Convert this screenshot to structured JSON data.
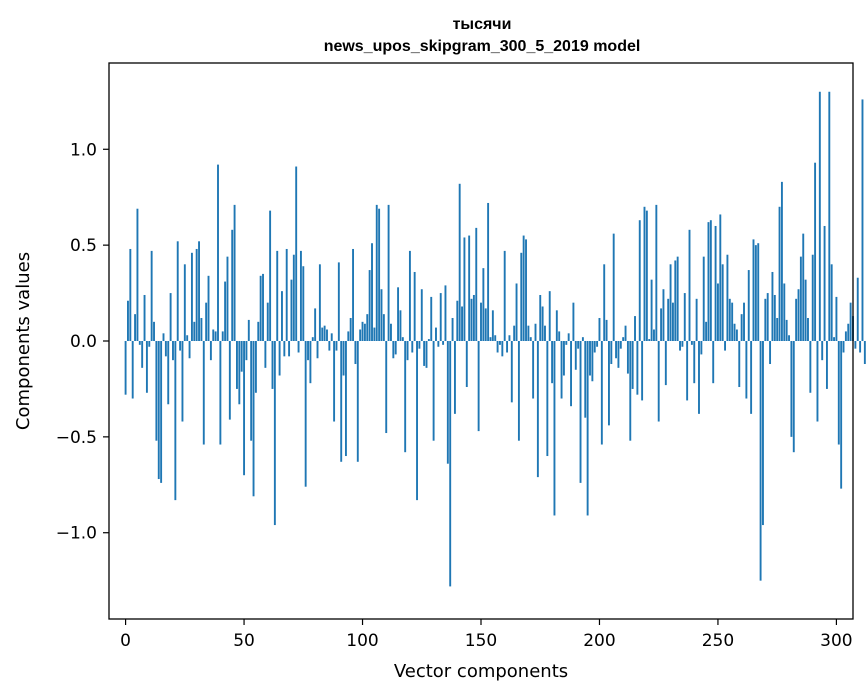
{
  "chart_data": {
    "type": "bar",
    "title": "тысячи",
    "subtitle": "news_upos_skipgram_300_5_2019 model",
    "xlabel": "Vector components",
    "ylabel": "Components values",
    "xlim": [
      -7,
      307
    ],
    "ylim": [
      -1.45,
      1.45
    ],
    "x_ticks": [
      0,
      50,
      100,
      150,
      200,
      250,
      300
    ],
    "x_tick_labels": [
      "0",
      "50",
      "100",
      "150",
      "200",
      "250",
      "300"
    ],
    "y_ticks": [
      -1.0,
      -0.5,
      0.0,
      0.5,
      1.0
    ],
    "y_tick_labels": [
      "−1.0",
      "−0.5",
      "0.0",
      "0.5",
      "1.0"
    ],
    "bar_color": "#1f77b4",
    "grid": false,
    "values": [
      -0.28,
      0.21,
      0.48,
      -0.3,
      0.14,
      0.69,
      -0.02,
      -0.14,
      0.24,
      -0.27,
      -0.03,
      0.47,
      0.1,
      -0.52,
      -0.72,
      -0.74,
      0.04,
      -0.08,
      -0.33,
      0.25,
      -0.1,
      -0.83,
      0.52,
      -0.05,
      -0.42,
      0.4,
      0.03,
      -0.09,
      0.46,
      0.1,
      0.48,
      0.52,
      0.12,
      -0.54,
      0.2,
      0.34,
      -0.1,
      0.06,
      0.05,
      0.92,
      -0.54,
      0.05,
      0.31,
      0.44,
      -0.41,
      0.58,
      0.71,
      -0.25,
      -0.33,
      -0.16,
      -0.7,
      -0.1,
      0.11,
      -0.52,
      -0.81,
      -0.27,
      0.1,
      0.34,
      0.35,
      -0.14,
      0.2,
      0.68,
      -0.25,
      -0.96,
      0.47,
      -0.18,
      0.26,
      -0.08,
      0.48,
      -0.08,
      0.32,
      0.45,
      0.91,
      -0.06,
      0.47,
      0.39,
      -0.76,
      -0.1,
      -0.22,
      0.02,
      0.17,
      -0.09,
      0.4,
      0.07,
      0.08,
      0.06,
      -0.05,
      0.04,
      -0.42,
      -0.05,
      0.41,
      -0.63,
      -0.18,
      -0.6,
      0.05,
      0.12,
      0.48,
      -0.12,
      -0.63,
      0.06,
      0.1,
      0.09,
      0.14,
      0.37,
      0.51,
      0.07,
      0.71,
      0.69,
      0.27,
      0.14,
      -0.48,
      0.71,
      0.09,
      -0.09,
      -0.07,
      0.28,
      0.16,
      0.02,
      -0.58,
      -0.1,
      0.47,
      -0.06,
      0.36,
      -0.83,
      -0.04,
      0.27,
      -0.13,
      -0.14,
      0.01,
      0.23,
      -0.52,
      0.07,
      -0.03,
      0.25,
      -0.02,
      0.29,
      -0.64,
      -1.28,
      0.12,
      -0.38,
      0.21,
      0.82,
      0.18,
      0.54,
      -0.24,
      0.55,
      0.22,
      0.24,
      0.59,
      -0.47,
      0.2,
      0.38,
      0.17,
      0.72,
      0.02,
      0.16,
      0.03,
      -0.06,
      -0.02,
      -0.08,
      0.47,
      -0.06,
      0.03,
      -0.32,
      0.08,
      0.3,
      -0.52,
      0.46,
      0.55,
      0.53,
      0.08,
      0.02,
      -0.3,
      0.09,
      -0.71,
      0.24,
      0.18,
      0.08,
      -0.6,
      0.26,
      -0.22,
      -0.91,
      0.16,
      0.05,
      -0.3,
      -0.18,
      -0.02,
      0.04,
      -0.34,
      0.2,
      -0.15,
      -0.04,
      -0.74,
      0.02,
      -0.4,
      -0.91,
      -0.18,
      -0.21,
      -0.06,
      -0.03,
      0.12,
      -0.54,
      0.4,
      0.11,
      -0.44,
      -0.12,
      0.56,
      -0.09,
      -0.14,
      -0.04,
      0.02,
      0.08,
      -0.17,
      -0.52,
      -0.25,
      0.13,
      -0.28,
      0.63,
      -0.31,
      0.7,
      0.68,
      0.01,
      0.32,
      0.06,
      0.71,
      -0.42,
      0.17,
      0.27,
      -0.23,
      0.22,
      0.4,
      0.2,
      0.42,
      0.44,
      -0.05,
      -0.03,
      0.25,
      -0.31,
      0.58,
      -0.02,
      -0.22,
      0.22,
      -0.38,
      -0.07,
      0.44,
      0.1,
      0.62,
      0.63,
      -0.22,
      0.6,
      0.3,
      0.66,
      0.4,
      -0.05,
      0.45,
      0.22,
      0.2,
      0.09,
      0.06,
      -0.24,
      0.14,
      0.2,
      -0.3,
      0.37,
      -0.38,
      0.53,
      0.5,
      0.51,
      -1.25,
      -0.96,
      0.22,
      0.25,
      -0.12,
      0.36,
      0.24,
      0.12,
      0.7,
      0.83,
      0.3,
      0.11,
      0.03,
      -0.5,
      -0.58,
      0.22,
      0.27,
      0.44,
      0.56,
      0.32,
      0.12,
      -0.27,
      0.45,
      0.93,
      -0.42,
      1.3,
      -0.1,
      0.6,
      -0.25,
      1.3,
      0.4,
      0.02,
      0.23,
      -0.54,
      -0.77,
      -0.06,
      0.05,
      0.09,
      0.2,
      0.13,
      -0.04,
      0.33,
      -0.06,
      1.26,
      -0.12
    ]
  }
}
